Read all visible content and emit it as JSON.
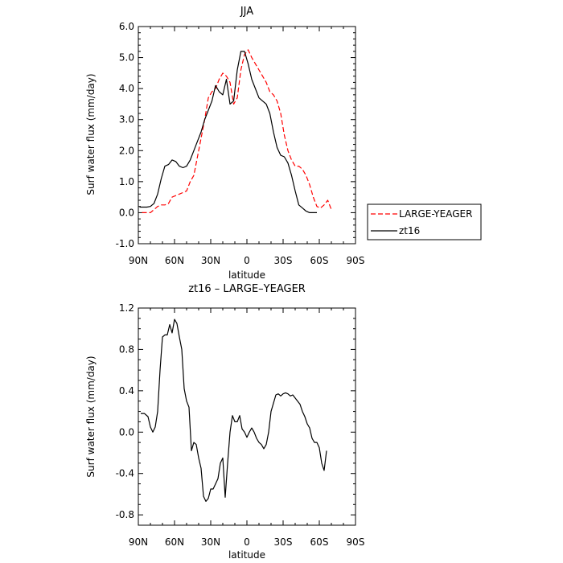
{
  "chart_data": [
    {
      "type": "line",
      "title": "JJA",
      "xlabel": "latitude",
      "ylabel": "Surf water flux (mm/day)",
      "xlim": [
        90,
        -90
      ],
      "ylim": [
        -1.0,
        6.0
      ],
      "xticks": [
        90,
        60,
        30,
        0,
        -30,
        -60,
        -90
      ],
      "xtick_labels": [
        "90N",
        "60N",
        "30N",
        "0",
        "30S",
        "60S",
        "90S"
      ],
      "yticks": [
        -1.0,
        0.0,
        1.0,
        2.0,
        3.0,
        4.0,
        5.0,
        6.0
      ],
      "ytick_labels": [
        "-1.0",
        "0.0",
        "1.0",
        "2.0",
        "3.0",
        "4.0",
        "5.0",
        "6.0"
      ],
      "legend_position": "outside-right",
      "series": [
        {
          "name": "LARGE-YEAGER",
          "color": "#ff0000",
          "style": "dashed",
          "x": [
            87,
            83,
            80,
            77,
            74,
            71,
            68,
            65,
            62,
            59,
            56,
            53,
            50,
            47,
            44,
            41,
            38,
            35,
            32,
            29,
            26,
            23,
            20,
            17,
            14,
            11,
            8,
            5,
            2,
            -1,
            -4,
            -7,
            -10,
            -13,
            -16,
            -19,
            -22,
            -25,
            -28,
            -31,
            -34,
            -37,
            -40,
            -43,
            -46,
            -49,
            -52,
            -55,
            -58,
            -61,
            -64,
            -67,
            -70,
            -73,
            -76,
            -79
          ],
          "values": [
            0.0,
            0.0,
            0.0,
            0.1,
            0.2,
            0.25,
            0.25,
            0.3,
            0.5,
            0.55,
            0.6,
            0.65,
            0.7,
            1.0,
            1.2,
            1.8,
            2.4,
            3.0,
            3.7,
            3.9,
            4.0,
            4.3,
            4.5,
            4.4,
            4.2,
            3.5,
            3.7,
            4.6,
            5.1,
            5.25,
            5.0,
            4.8,
            4.6,
            4.4,
            4.2,
            3.9,
            3.8,
            3.6,
            3.2,
            2.5,
            2.0,
            1.7,
            1.5,
            1.5,
            1.4,
            1.2,
            0.9,
            0.5,
            0.2,
            0.15,
            0.25,
            0.4,
            0.1,
            null,
            null,
            null
          ]
        },
        {
          "name": "zt16",
          "color": "#000000",
          "style": "solid",
          "x": [
            89,
            86,
            83,
            80,
            77,
            74,
            71,
            68,
            65,
            62,
            59,
            56,
            53,
            50,
            47,
            44,
            41,
            38,
            35,
            32,
            29,
            26,
            23,
            20,
            17,
            14,
            11,
            8,
            5,
            2,
            -1,
            -4,
            -7,
            -10,
            -13,
            -16,
            -19,
            -22,
            -25,
            -28,
            -31,
            -34,
            -37,
            -40,
            -43,
            -46,
            -49,
            -52,
            -55,
            -58,
            -61,
            -64,
            -67,
            -70,
            -73,
            -76,
            -79,
            -82
          ],
          "values": [
            0.18,
            0.18,
            0.18,
            0.2,
            0.3,
            0.6,
            1.1,
            1.5,
            1.55,
            1.7,
            1.65,
            1.5,
            1.45,
            1.5,
            1.7,
            2.0,
            2.3,
            2.6,
            3.0,
            3.3,
            3.6,
            4.1,
            3.9,
            3.8,
            4.3,
            3.5,
            3.6,
            4.6,
            5.2,
            5.2,
            4.8,
            4.3,
            4.0,
            3.7,
            3.6,
            3.5,
            3.2,
            2.6,
            2.1,
            1.85,
            1.8,
            1.6,
            1.2,
            0.7,
            0.25,
            0.15,
            0.05,
            0.0,
            0.0,
            0.0,
            null,
            null,
            null,
            null,
            null,
            null,
            null,
            null
          ]
        }
      ]
    },
    {
      "type": "line",
      "title": "zt16 – LARGE–YEAGER",
      "xlabel": "latitude",
      "ylabel": "Surf water flux (mm/day)",
      "xlim": [
        90,
        -90
      ],
      "ylim": [
        -0.9,
        1.2
      ],
      "xticks": [
        90,
        60,
        30,
        0,
        -30,
        -60,
        -90
      ],
      "xtick_labels": [
        "90N",
        "60N",
        "30N",
        "0",
        "30S",
        "60S",
        "90S"
      ],
      "yticks": [
        -0.8,
        -0.4,
        0.0,
        0.4,
        0.8,
        1.2
      ],
      "ytick_labels": [
        "-0.8",
        "-0.4",
        "0.0",
        "0.4",
        "0.8",
        "1.2"
      ],
      "series": [
        {
          "color": "#000000",
          "style": "solid",
          "x": [
            88,
            85,
            82,
            80,
            78,
            76,
            74,
            72,
            70,
            68,
            66,
            64,
            62,
            60,
            58,
            56,
            54,
            52,
            50,
            48,
            46,
            44,
            42,
            40,
            38,
            36,
            34,
            32,
            30,
            28,
            26,
            24,
            22,
            20,
            18,
            16,
            14,
            12,
            10,
            8,
            6,
            4,
            2,
            0,
            -2,
            -4,
            -6,
            -8,
            -10,
            -12,
            -14,
            -16,
            -18,
            -20,
            -22,
            -24,
            -26,
            -28,
            -30,
            -32,
            -34,
            -36,
            -38,
            -40,
            -42,
            -44,
            -46,
            -48,
            -50,
            -52,
            -54,
            -56,
            -58,
            -60,
            -62,
            -64,
            -66,
            -68,
            -70,
            -72,
            -74,
            -76,
            -78
          ],
          "values": [
            0.18,
            0.18,
            0.15,
            0.05,
            0.0,
            0.05,
            0.2,
            0.6,
            0.92,
            0.94,
            0.94,
            1.04,
            0.96,
            1.09,
            1.05,
            0.92,
            0.8,
            0.42,
            0.3,
            0.24,
            -0.18,
            -0.1,
            -0.12,
            -0.25,
            -0.35,
            -0.62,
            -0.67,
            -0.64,
            -0.55,
            -0.55,
            -0.5,
            -0.45,
            -0.3,
            -0.25,
            -0.63,
            -0.3,
            0.0,
            0.16,
            0.1,
            0.1,
            0.16,
            0.03,
            0.0,
            -0.05,
            0.0,
            0.04,
            0.0,
            -0.06,
            -0.1,
            -0.12,
            -0.16,
            -0.12,
            0.0,
            0.2,
            0.28,
            0.36,
            0.37,
            0.35,
            0.37,
            0.38,
            0.37,
            0.35,
            0.36,
            0.33,
            0.3,
            0.27,
            0.2,
            0.15,
            0.08,
            0.04,
            -0.06,
            -0.1,
            -0.1,
            -0.15,
            -0.3,
            -0.37,
            -0.18,
            null,
            null,
            null,
            null,
            null,
            null
          ]
        }
      ]
    }
  ]
}
